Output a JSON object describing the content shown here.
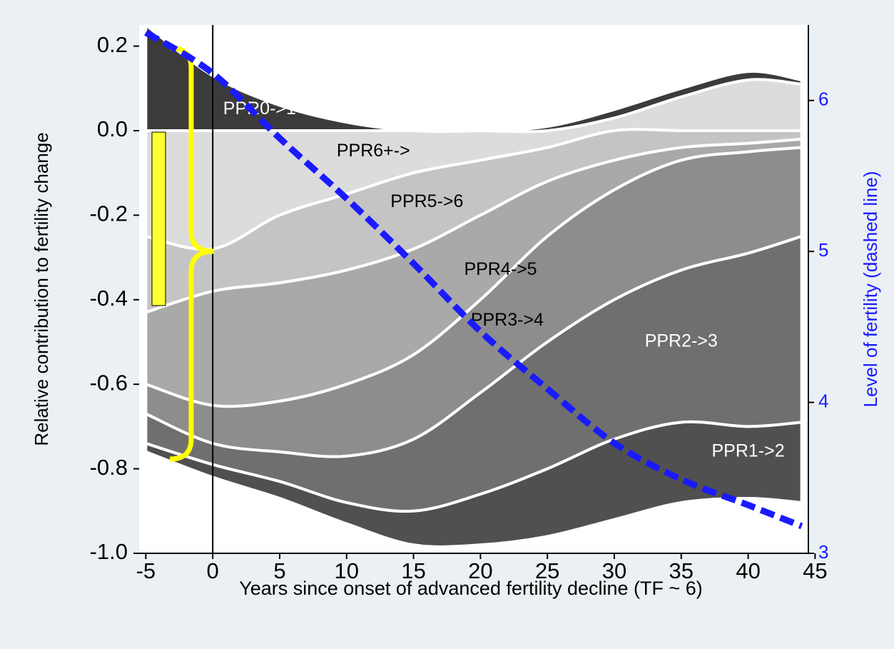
{
  "chart_data": {
    "type": "area",
    "stacked": true,
    "x_label": "Years since onset of advanced fertility decline (TF ~ 6)",
    "y_label": "Relative contribution to fertility change",
    "y2_label": "Level of fertility (dashed line)",
    "x": [
      -5,
      0,
      5,
      10,
      15,
      20,
      25,
      30,
      35,
      40,
      44
    ],
    "series": [
      {
        "name": "PPR6+->",
        "color": "#dcdcdc",
        "label_color": "#000000",
        "values": [
          -0.25,
          -0.28,
          -0.2,
          -0.15,
          -0.1,
          -0.07,
          -0.04,
          0.03,
          0.08,
          0.12,
          0.11
        ]
      },
      {
        "name": "PPR5->6",
        "color": "#c4c4c4",
        "label_color": "#000000",
        "values": [
          -0.18,
          -0.1,
          -0.16,
          -0.18,
          -0.18,
          -0.13,
          -0.08,
          -0.07,
          -0.04,
          -0.03,
          -0.02
        ]
      },
      {
        "name": "PPR4->5",
        "color": "#a9a9a9",
        "label_color": "#000000",
        "values": [
          -0.17,
          -0.27,
          -0.28,
          -0.27,
          -0.25,
          -0.2,
          -0.13,
          -0.07,
          -0.03,
          -0.02,
          -0.02
        ]
      },
      {
        "name": "PPR3->4",
        "color": "#8d8d8d",
        "label_color": "#000000",
        "values": [
          -0.07,
          -0.09,
          -0.12,
          -0.17,
          -0.2,
          -0.22,
          -0.25,
          -0.26,
          -0.26,
          -0.24,
          -0.21
        ]
      },
      {
        "name": "PPR2->3",
        "color": "#6f6f6f",
        "label_color": "#ffffff",
        "values": [
          -0.07,
          -0.05,
          -0.07,
          -0.11,
          -0.17,
          -0.24,
          -0.3,
          -0.33,
          -0.36,
          -0.41,
          -0.44
        ]
      },
      {
        "name": "PPR1->2",
        "color": "#505050",
        "label_color": "#ffffff",
        "values": [
          -0.02,
          -0.03,
          -0.04,
          -0.05,
          -0.08,
          -0.12,
          -0.16,
          -0.19,
          -0.19,
          -0.17,
          -0.19
        ]
      },
      {
        "name": "PPR0->1",
        "color": "#3b3b3b",
        "label_color": "#ffffff",
        "values": [
          0.25,
          0.13,
          0.06,
          0.02,
          0,
          0,
          0.01,
          0.02,
          0.02,
          0.02,
          0.01
        ]
      },
      {
        "axis": "y2",
        "color": "#1a1aff",
        "dashed": true,
        "values": [
          6.45,
          6.18,
          5.75,
          5.35,
          4.92,
          4.47,
          4.09,
          3.73,
          3.49,
          3.32,
          3.18
        ]
      }
    ],
    "xlim": [
      -5.5,
      44.5
    ],
    "xticks": [
      -5,
      0,
      5,
      10,
      15,
      20,
      25,
      30,
      35,
      40,
      45
    ],
    "ylim": [
      -1.0,
      0.25
    ],
    "yticks": [
      {
        "value": -1.0,
        "label": "-1.0"
      },
      -0.8,
      -0.6,
      -0.4,
      -0.2,
      {
        "value": 0,
        "label": "0.0"
      },
      0.2
    ],
    "y2lim": [
      3,
      6.5
    ],
    "y2ticks": [
      3,
      4,
      5,
      6
    ],
    "y2_color": "#1a1aff",
    "vline": 0
  }
}
